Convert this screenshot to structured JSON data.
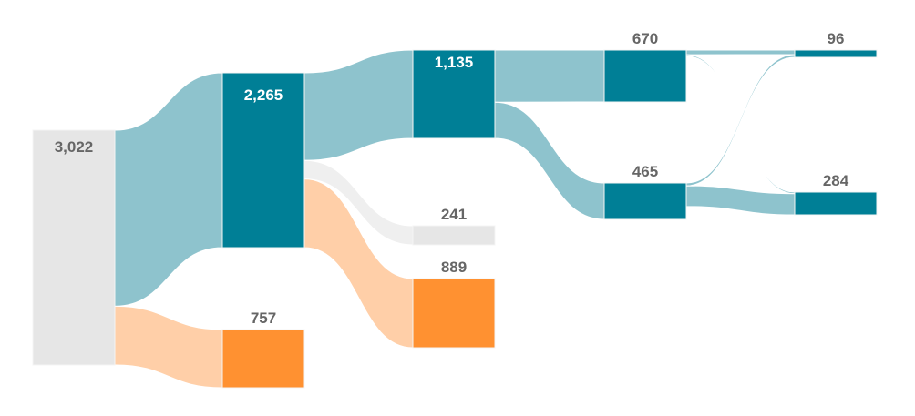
{
  "chart_data": {
    "type": "sankey",
    "title": "",
    "colors": {
      "neutral_node": "#e6e6e6",
      "teal_node": "#007f96",
      "orange_node": "#ff9131",
      "teal_link": "#8ec3cd",
      "orange_link": "#ffcfa8",
      "grey_link": "#efefef",
      "label_dark": "#666666",
      "label_light": "#ffffff",
      "node_outline": "#f4f4f4"
    },
    "nodes": [
      {
        "id": "n0",
        "label": "3,022",
        "value": 3022,
        "column": 0,
        "style": "neutral"
      },
      {
        "id": "n1",
        "label": "2,265",
        "value": 2265,
        "column": 1,
        "style": "teal"
      },
      {
        "id": "n2",
        "label": "757",
        "value": 757,
        "column": 1,
        "style": "orange"
      },
      {
        "id": "n3",
        "label": "1,135",
        "value": 1135,
        "column": 2,
        "style": "teal"
      },
      {
        "id": "n4",
        "label": "241",
        "value": 241,
        "column": 2,
        "style": "neutral"
      },
      {
        "id": "n5",
        "label": "889",
        "value": 889,
        "column": 2,
        "style": "orange"
      },
      {
        "id": "n6",
        "label": "670",
        "value": 670,
        "column": 3,
        "style": "teal"
      },
      {
        "id": "n7",
        "label": "465",
        "value": 465,
        "column": 3,
        "style": "teal"
      },
      {
        "id": "n8",
        "label": "96",
        "value": 96,
        "column": 4,
        "style": "teal"
      },
      {
        "id": "n9",
        "label": "284",
        "value": 284,
        "column": 4,
        "style": "teal"
      }
    ],
    "links": [
      {
        "source": "n0",
        "target": "n1",
        "value": 2265,
        "style": "teal"
      },
      {
        "source": "n0",
        "target": "n2",
        "value": 757,
        "style": "orange"
      },
      {
        "source": "n1",
        "target": "n3",
        "value": 1135,
        "style": "teal"
      },
      {
        "source": "n1",
        "target": "n4",
        "value": 241,
        "style": "grey"
      },
      {
        "source": "n1",
        "target": "n5",
        "value": 889,
        "style": "orange"
      },
      {
        "source": "n3",
        "target": "n6",
        "value": 670,
        "style": "teal"
      },
      {
        "source": "n3",
        "target": "n7",
        "value": 465,
        "style": "teal"
      },
      {
        "source": "n6",
        "target": "n8",
        "value": 60,
        "style": "teal"
      },
      {
        "source": "n6",
        "target": "n9",
        "value": 20,
        "style": "teal"
      },
      {
        "source": "n7",
        "target": "n8",
        "value": 36,
        "style": "teal"
      },
      {
        "source": "n7",
        "target": "n9",
        "value": 264,
        "style": "teal"
      }
    ]
  }
}
